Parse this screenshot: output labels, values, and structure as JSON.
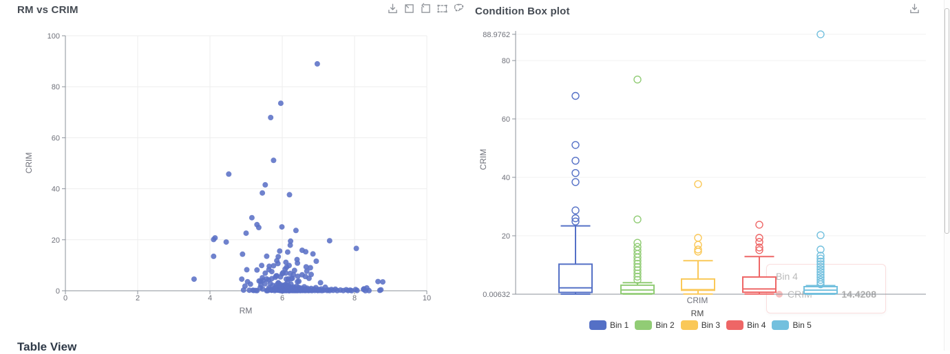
{
  "tooltip": {
    "title": "Bin 4",
    "series": "CRIM",
    "value": "14.4208",
    "color": "#ee6666"
  },
  "table_view": {
    "heading": "Table View"
  },
  "icons": {
    "scatter_toolbar": [
      "save-as-image",
      "zoom-box-select",
      "restore",
      "rect-brush-select",
      "polygon-brush-select"
    ],
    "box_toolbar": [
      "save-as-image"
    ]
  },
  "chart_data": [
    {
      "type": "scatter",
      "title": "RM vs CRIM",
      "xlabel": "RM",
      "ylabel": "CRIM",
      "xlim": [
        0,
        10
      ],
      "ylim": [
        0,
        100
      ],
      "xticks": [
        0,
        2,
        4,
        6,
        8,
        10
      ],
      "yticks": [
        0,
        20,
        40,
        60,
        80,
        100
      ],
      "grid": true,
      "point_color": "#5b71c6",
      "points": [
        [
          6.97,
          88.98
        ],
        [
          5.96,
          73.53
        ],
        [
          5.68,
          67.92
        ],
        [
          5.76,
          51.14
        ],
        [
          4.52,
          45.75
        ],
        [
          5.53,
          41.53
        ],
        [
          5.45,
          38.35
        ],
        [
          6.2,
          37.66
        ],
        [
          5.16,
          28.66
        ],
        [
          5.3,
          25.94
        ],
        [
          5.99,
          25.05
        ],
        [
          5.35,
          24.8
        ],
        [
          6.38,
          23.65
        ],
        [
          5.0,
          22.6
        ],
        [
          4.14,
          20.72
        ],
        [
          4.1,
          20.1
        ],
        [
          4.45,
          19.1
        ],
        [
          7.31,
          19.61
        ],
        [
          6.23,
          19.45
        ],
        [
          8.05,
          16.6
        ],
        [
          6.22,
          17.87
        ],
        [
          6.55,
          15.87
        ],
        [
          5.93,
          15.58
        ],
        [
          6.15,
          15.18
        ],
        [
          6.65,
          15.29
        ],
        [
          6.85,
          14.44
        ],
        [
          4.9,
          14.33
        ],
        [
          5.89,
          13.36
        ],
        [
          4.1,
          13.5
        ],
        [
          5.57,
          13.52
        ],
        [
          6.41,
          12.25
        ],
        [
          5.85,
          11.81
        ],
        [
          6.1,
          11.16
        ],
        [
          6.42,
          10.83
        ],
        [
          5.88,
          10.67
        ],
        [
          6.19,
          9.93
        ],
        [
          5.43,
          9.92
        ],
        [
          5.64,
          9.6
        ],
        [
          6.12,
          9.24
        ],
        [
          6.66,
          9.39
        ],
        [
          6.78,
          9.03
        ],
        [
          6.94,
          11.58
        ],
        [
          5.76,
          9.82
        ],
        [
          3.56,
          4.55
        ],
        [
          5.04,
          3.54
        ],
        [
          5.57,
          4.64
        ],
        [
          5.71,
          4.75
        ],
        [
          5.95,
          5.44
        ],
        [
          6.1,
          6.96
        ],
        [
          5.83,
          5.82
        ],
        [
          6.0,
          6.65
        ],
        [
          6.22,
          6.8
        ],
        [
          5.36,
          3.84
        ],
        [
          5.4,
          3.69
        ],
        [
          5.62,
          4.26
        ],
        [
          5.81,
          5.29
        ],
        [
          6.11,
          4.55
        ],
        [
          6.25,
          4.75
        ],
        [
          5.89,
          3.16
        ],
        [
          6.42,
          3.56
        ],
        [
          6.46,
          3.69
        ],
        [
          6.15,
          3.47
        ],
        [
          6.28,
          4.89
        ],
        [
          6.17,
          4.64
        ],
        [
          5.45,
          5.09
        ],
        [
          5.85,
          5.87
        ],
        [
          6.31,
          6.31
        ],
        [
          6.02,
          7.05
        ],
        [
          5.71,
          7.52
        ],
        [
          6.34,
          7.99
        ],
        [
          6.08,
          8.49
        ],
        [
          5.47,
          4.1
        ],
        [
          5.63,
          8.27
        ],
        [
          6.43,
          5.66
        ],
        [
          6.55,
          6.28
        ],
        [
          6.74,
          4.87
        ],
        [
          6.64,
          5.58
        ],
        [
          6.8,
          6.39
        ],
        [
          6.68,
          7.67
        ],
        [
          5.3,
          8.15
        ],
        [
          5.53,
          6.91
        ],
        [
          5.02,
          8.25
        ],
        [
          4.88,
          4.55
        ],
        [
          8.78,
          3.47
        ],
        [
          8.65,
          3.6
        ],
        [
          7.06,
          3.15
        ],
        [
          4.93,
          0.26
        ],
        [
          4.97,
          1.8
        ],
        [
          5.09,
          0.21
        ],
        [
          5.12,
          2.6
        ],
        [
          5.19,
          0.22
        ],
        [
          5.21,
          0.13
        ],
        [
          5.27,
          0.11
        ],
        [
          5.3,
          0.05
        ],
        [
          5.39,
          1.2
        ],
        [
          5.41,
          2.3
        ],
        [
          5.46,
          0.67
        ],
        [
          5.52,
          2.73
        ],
        [
          5.57,
          0.04
        ],
        [
          5.59,
          0.09
        ],
        [
          5.61,
          0.11
        ],
        [
          5.63,
          1.13
        ],
        [
          5.65,
          0.63
        ],
        [
          5.67,
          2.82
        ],
        [
          5.7,
          0.21
        ],
        [
          5.71,
          0.22
        ],
        [
          5.73,
          0.41
        ],
        [
          5.74,
          2.07
        ],
        [
          5.76,
          0.53
        ],
        [
          5.79,
          0.95
        ],
        [
          5.79,
          0.05
        ],
        [
          5.81,
          1.25
        ],
        [
          5.82,
          0.35
        ],
        [
          5.84,
          1.13
        ],
        [
          5.85,
          2.37
        ],
        [
          5.87,
          0.24
        ],
        [
          5.87,
          1.61
        ],
        [
          5.89,
          0.33
        ],
        [
          5.9,
          2.92
        ],
        [
          5.91,
          0.3
        ],
        [
          5.93,
          0.14
        ],
        [
          5.94,
          0.25
        ],
        [
          5.95,
          0.08
        ],
        [
          5.96,
          2.33
        ],
        [
          5.97,
          0.73
        ],
        [
          5.98,
          0.62
        ],
        [
          5.98,
          0.04
        ],
        [
          5.99,
          1.42
        ],
        [
          6.0,
          0.03
        ],
        [
          6.01,
          0.55
        ],
        [
          6.02,
          1.66
        ],
        [
          6.02,
          0.02
        ],
        [
          6.03,
          0.26
        ],
        [
          6.03,
          0.09
        ],
        [
          6.04,
          2.14
        ],
        [
          6.05,
          0.06
        ],
        [
          6.05,
          1.13
        ],
        [
          6.06,
          0.15
        ],
        [
          6.06,
          1.51
        ],
        [
          6.07,
          0.42
        ],
        [
          6.08,
          0.1
        ],
        [
          6.09,
          0.38
        ],
        [
          6.09,
          2.44
        ],
        [
          6.1,
          0.08
        ],
        [
          6.1,
          0.23
        ],
        [
          6.11,
          1.0
        ],
        [
          6.12,
          0.17
        ],
        [
          6.12,
          0.07
        ],
        [
          6.13,
          2.02
        ],
        [
          6.13,
          0.34
        ],
        [
          6.14,
          0.61
        ],
        [
          6.15,
          0.13
        ],
        [
          6.15,
          1.36
        ],
        [
          6.16,
          0.26
        ],
        [
          6.17,
          0.05
        ],
        [
          6.17,
          0.79
        ],
        [
          6.18,
          1.84
        ],
        [
          6.19,
          0.09
        ],
        [
          6.19,
          0.49
        ],
        [
          6.2,
          0.03
        ],
        [
          6.21,
          1.22
        ],
        [
          6.22,
          0.29
        ],
        [
          6.23,
          0.52
        ],
        [
          6.24,
          2.63
        ],
        [
          6.25,
          0.1
        ],
        [
          6.25,
          0.2
        ],
        [
          6.26,
          0.54
        ],
        [
          6.27,
          1.05
        ],
        [
          6.28,
          0.08
        ],
        [
          6.29,
          0.96
        ],
        [
          6.3,
          0.35
        ],
        [
          6.31,
          1.47
        ],
        [
          6.32,
          0.07
        ],
        [
          6.33,
          0.19
        ],
        [
          6.34,
          0.59
        ],
        [
          6.35,
          1.12
        ],
        [
          6.36,
          0.06
        ],
        [
          6.37,
          0.88
        ],
        [
          6.38,
          0.24
        ],
        [
          6.4,
          1.76
        ],
        [
          6.41,
          0.05
        ],
        [
          6.42,
          0.29
        ],
        [
          6.43,
          0.72
        ],
        [
          6.44,
          0.12
        ],
        [
          6.45,
          1.31
        ],
        [
          6.47,
          0.18
        ],
        [
          6.48,
          0.68
        ],
        [
          6.5,
          0.06
        ],
        [
          6.51,
          1.05
        ],
        [
          6.53,
          0.25
        ],
        [
          6.54,
          0.44
        ],
        [
          6.56,
          0.11
        ],
        [
          6.58,
          0.8
        ],
        [
          6.59,
          0.17
        ],
        [
          6.61,
          1.55
        ],
        [
          6.63,
          0.09
        ],
        [
          6.64,
          0.36
        ],
        [
          6.66,
          0.62
        ],
        [
          6.67,
          0.13
        ],
        [
          6.69,
          1.0
        ],
        [
          6.71,
          0.22
        ],
        [
          6.73,
          0.07
        ],
        [
          6.75,
          0.55
        ],
        [
          6.77,
          0.16
        ],
        [
          6.8,
          0.92
        ],
        [
          6.82,
          0.06
        ],
        [
          6.85,
          0.31
        ],
        [
          6.88,
          0.63
        ],
        [
          6.9,
          0.1
        ],
        [
          6.93,
          1.21
        ],
        [
          6.96,
          0.26
        ],
        [
          6.98,
          0.08
        ],
        [
          7.01,
          0.52
        ],
        [
          7.04,
          0.14
        ],
        [
          7.08,
          0.7
        ],
        [
          7.1,
          0.05
        ],
        [
          7.15,
          0.22
        ],
        [
          7.19,
          1.38
        ],
        [
          7.24,
          0.1
        ],
        [
          7.27,
          0.35
        ],
        [
          7.31,
          0.06
        ],
        [
          7.36,
          0.52
        ],
        [
          7.41,
          0.15
        ],
        [
          7.47,
          0.62
        ],
        [
          7.52,
          0.05
        ],
        [
          7.61,
          0.28
        ],
        [
          7.69,
          0.09
        ],
        [
          7.77,
          0.4
        ],
        [
          7.82,
          0.07
        ],
        [
          7.88,
          0.24
        ],
        [
          7.92,
          0.04
        ],
        [
          8.03,
          0.49
        ],
        [
          8.07,
          0.12
        ],
        [
          8.25,
          0.53
        ],
        [
          8.3,
          0.03
        ],
        [
          8.34,
          1.1
        ],
        [
          8.4,
          0.06
        ],
        [
          8.7,
          0.15
        ],
        [
          8.73,
          0.39
        ],
        [
          8.26,
          0.72
        ]
      ]
    },
    {
      "type": "boxplot",
      "title": "Condition Box plot",
      "xlabel": "CRIM",
      "ylabel": "CRIM",
      "legend_title": "RM",
      "ylim": [
        0.00632,
        88.9762
      ],
      "yticks": [
        [
          88.9762,
          "88.9762"
        ],
        [
          80,
          "80"
        ],
        [
          60,
          "60"
        ],
        [
          40,
          "40"
        ],
        [
          20,
          "20"
        ],
        [
          0.00632,
          "0.00632"
        ]
      ],
      "grid": true,
      "legend_position": "bottom",
      "series": [
        {
          "name": "Bin 1",
          "color": "#5470c6",
          "min": 0.03,
          "q1": 0.64,
          "median": 2.2,
          "q3": 10.3,
          "max": 23.4,
          "outliers": [
            24.9,
            26.0,
            28.7,
            38.4,
            41.5,
            45.7,
            51.1,
            67.9
          ]
        },
        {
          "name": "Bin 2",
          "color": "#91cc75",
          "min": 0.02,
          "q1": 0.2,
          "median": 1.45,
          "q3": 3.1,
          "max": 3.95,
          "outliers": [
            4.9,
            6.0,
            7.1,
            8.2,
            9.3,
            10.4,
            11.5,
            12.6,
            13.8,
            15.0,
            16.2,
            17.6,
            25.6,
            73.5
          ]
        },
        {
          "name": "Bin 3",
          "color": "#fac858",
          "min": 0.06,
          "q1": 1.35,
          "median": 1.55,
          "q3": 5.2,
          "max": 11.5,
          "outliers": [
            14.6,
            15.3,
            16.9,
            19.3,
            37.7
          ]
        },
        {
          "name": "Bin 4",
          "color": "#ee6666",
          "min": 0.05,
          "q1": 0.7,
          "median": 1.8,
          "q3": 5.9,
          "max": 12.9,
          "outliers": [
            15.1,
            16.0,
            17.9,
            19.3,
            23.8
          ]
        },
        {
          "name": "Bin 5",
          "color": "#73c0de",
          "min": 0.01,
          "q1": 0.25,
          "median": 1.4,
          "q3": 2.6,
          "max": 2.95,
          "outliers": [
            3.4,
            4.1,
            4.9,
            5.8,
            6.7,
            7.6,
            8.5,
            9.4,
            10.3,
            11.2,
            12.2,
            13.2,
            15.3,
            20.2,
            88.9762
          ]
        }
      ]
    }
  ]
}
